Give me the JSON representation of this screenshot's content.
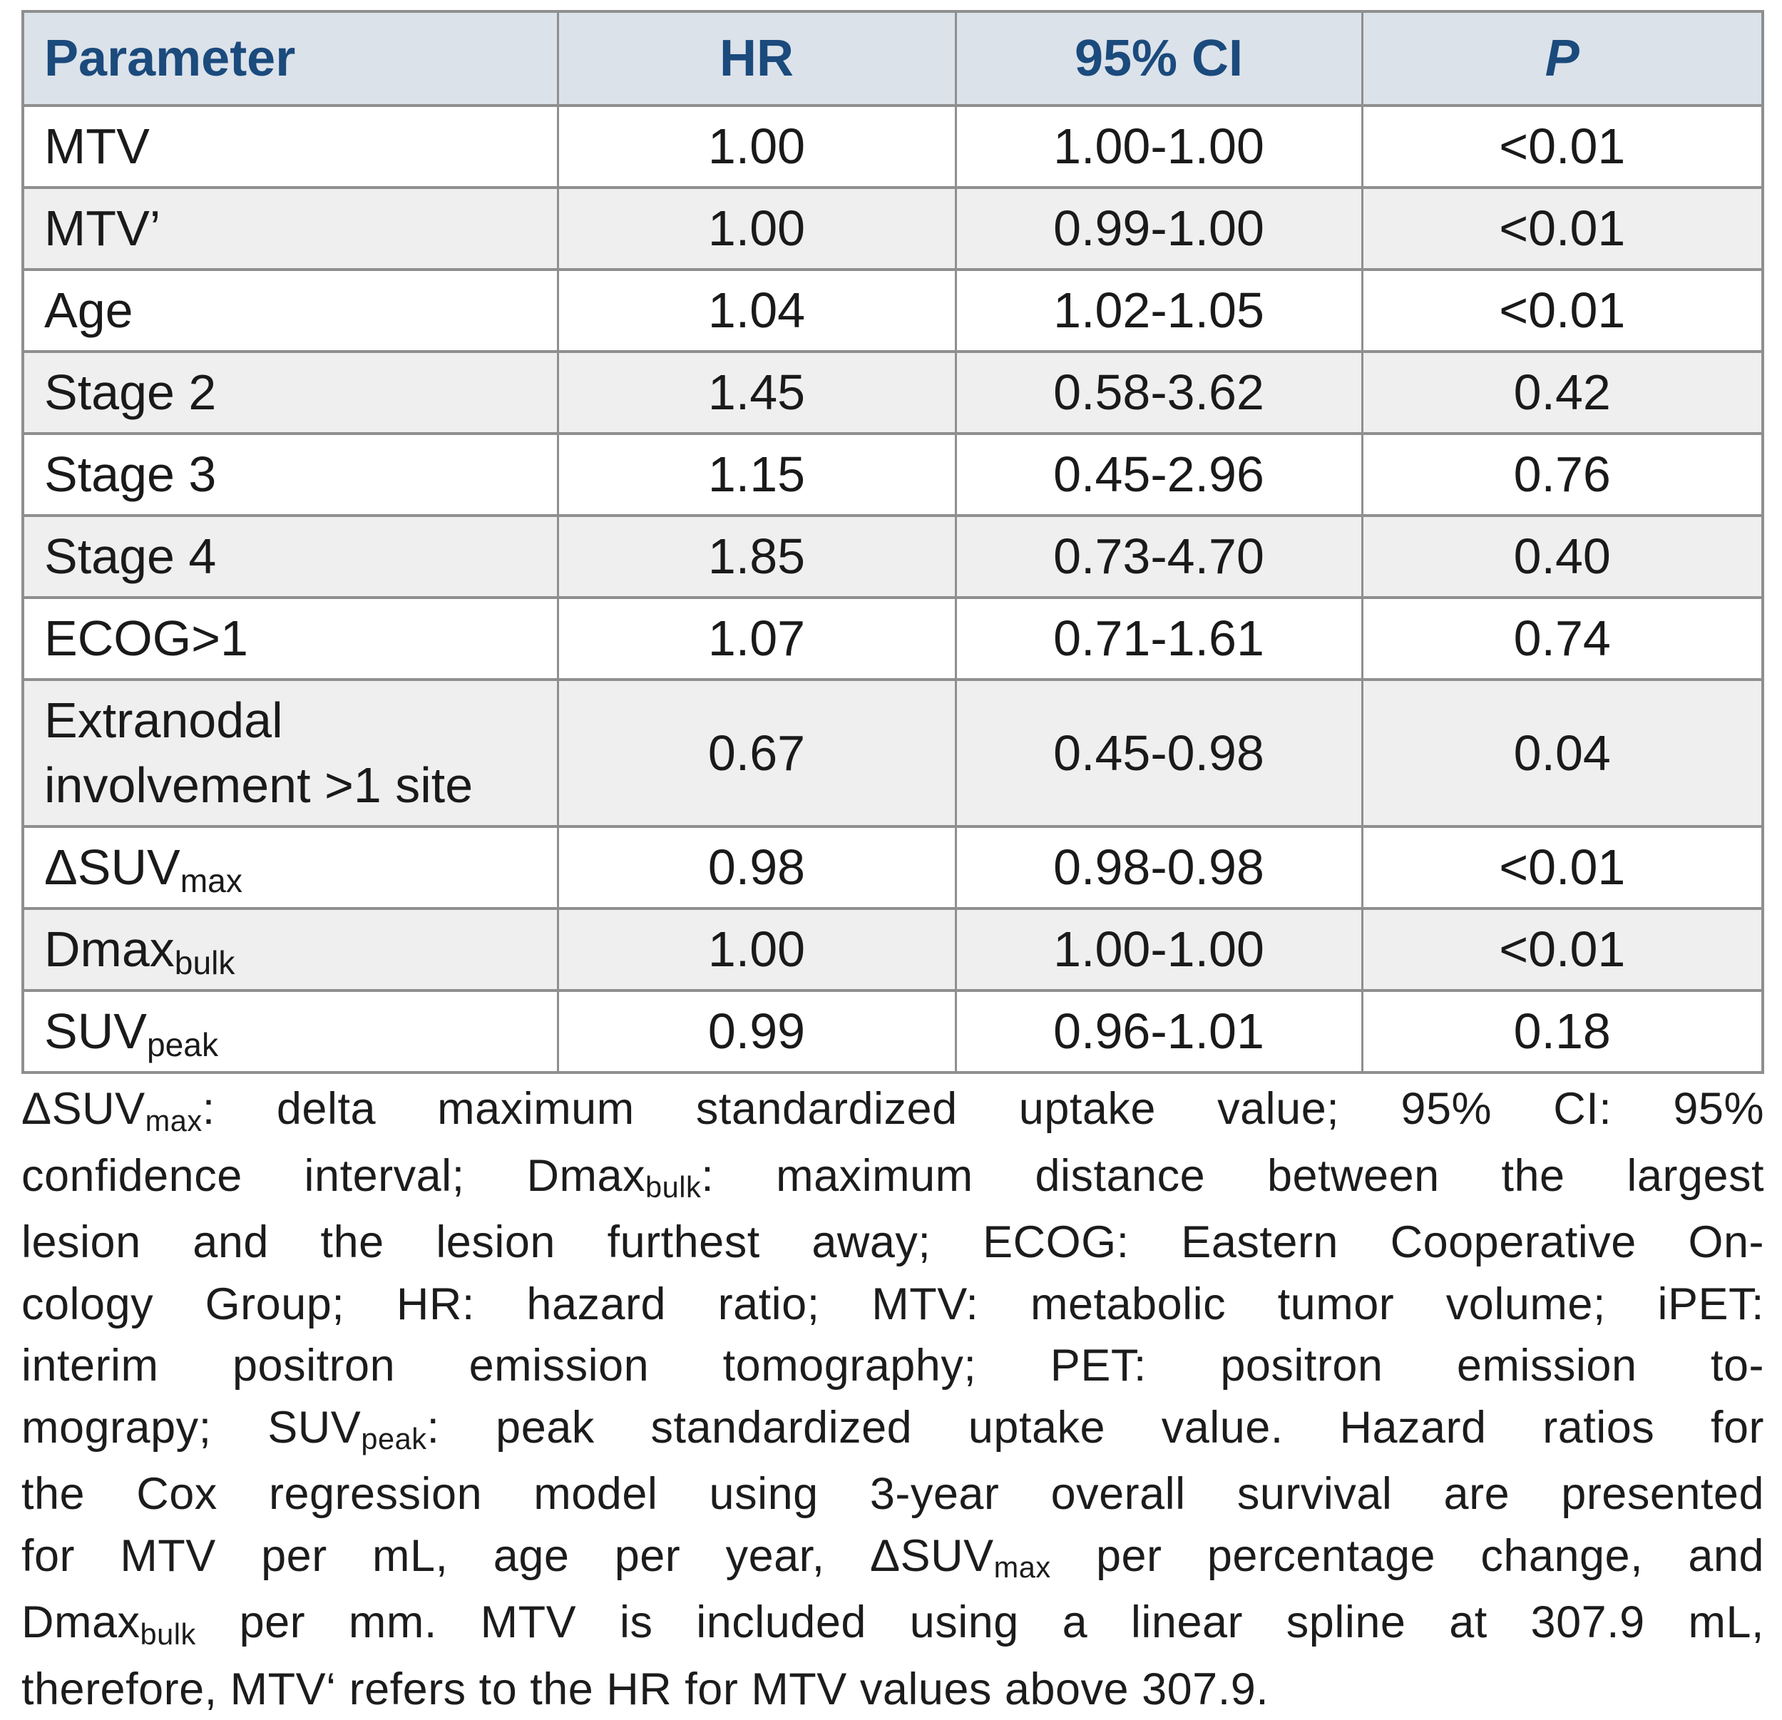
{
  "table": {
    "headers": [
      {
        "label": "Parameter",
        "align": "left",
        "italic": false
      },
      {
        "label": "HR",
        "align": "center",
        "italic": false
      },
      {
        "label": "95% CI",
        "align": "center",
        "italic": false
      },
      {
        "label": "P",
        "align": "center",
        "italic": true
      }
    ],
    "rows": [
      {
        "param": [
          {
            "text": "MTV"
          }
        ],
        "hr": "1.00",
        "ci": "1.00-1.00",
        "p": "<0.01"
      },
      {
        "param": [
          {
            "text": "MTV’"
          }
        ],
        "hr": "1.00",
        "ci": "0.99-1.00",
        "p": "<0.01"
      },
      {
        "param": [
          {
            "text": "Age"
          }
        ],
        "hr": "1.04",
        "ci": "1.02-1.05",
        "p": "<0.01"
      },
      {
        "param": [
          {
            "text": "Stage 2"
          }
        ],
        "hr": "1.45",
        "ci": "0.58-3.62",
        "p": "0.42"
      },
      {
        "param": [
          {
            "text": "Stage 3"
          }
        ],
        "hr": "1.15",
        "ci": "0.45-2.96",
        "p": "0.76"
      },
      {
        "param": [
          {
            "text": "Stage 4"
          }
        ],
        "hr": "1.85",
        "ci": "0.73-4.70",
        "p": "0.40"
      },
      {
        "param": [
          {
            "text": "ECOG>1"
          }
        ],
        "hr": "1.07",
        "ci": "0.71-1.61",
        "p": "0.74"
      },
      {
        "param": [
          {
            "text": "Extranodal involvement >1 site"
          }
        ],
        "hr": "0.67",
        "ci": "0.45-0.98",
        "p": "0.04"
      },
      {
        "param": [
          {
            "text": "ΔSUV"
          },
          {
            "text": "max",
            "sub": true
          }
        ],
        "hr": "0.98",
        "ci": "0.98-0.98",
        "p": "<0.01"
      },
      {
        "param": [
          {
            "text": "Dmax"
          },
          {
            "text": "bulk",
            "sub": true
          }
        ],
        "hr": "1.00",
        "ci": "1.00-1.00",
        "p": "<0.01"
      },
      {
        "param": [
          {
            "text": "SUV"
          },
          {
            "text": "peak",
            "sub": true
          }
        ],
        "hr": "0.99",
        "ci": "0.96-1.01",
        "p": "0.18"
      }
    ]
  },
  "footnote": {
    "lines": [
      [
        {
          "text": "ΔSUV"
        },
        {
          "text": "max",
          "sub": true
        },
        {
          "text": ": delta maximum standardized uptake value; 95% CI: 95%"
        }
      ],
      [
        {
          "text": "confidence interval; Dmax"
        },
        {
          "text": "bulk",
          "sub": true
        },
        {
          "text": ": maximum distance between the largest"
        }
      ],
      [
        {
          "text": "lesion and the lesion furthest away; ECOG: Eastern Cooperative On-"
        }
      ],
      [
        {
          "text": "cology Group; HR: hazard ratio; MTV: metabolic tumor volume; iPET:"
        }
      ],
      [
        {
          "text": "interim positron emission tomography; PET: positron emission to-"
        }
      ],
      [
        {
          "text": "mograpy; SUV"
        },
        {
          "text": "peak",
          "sub": true
        },
        {
          "text": ": peak standardized uptake value. Hazard ratios for"
        }
      ],
      [
        {
          "text": "the Cox regression model using 3-year overall survival are presented"
        }
      ],
      [
        {
          "text": "for MTV per mL, age per year, ΔSUV"
        },
        {
          "text": "max",
          "sub": true
        },
        {
          "text": " per percentage change, and"
        }
      ],
      [
        {
          "text": "Dmax"
        },
        {
          "text": "bulk",
          "sub": true
        },
        {
          "text": " per mm. MTV is included using a linear spline at 307.9 mL,"
        }
      ],
      [
        {
          "text": "therefore, MTV‘ refers to the HR for MTV values above 307.9."
        }
      ]
    ]
  },
  "colors": {
    "header_bg": "#dbe2ea",
    "header_text": "#1b4a7c",
    "row_alt_bg": "#efefef",
    "border": "#8f8f8f",
    "body_text": "#1a1a1a"
  }
}
